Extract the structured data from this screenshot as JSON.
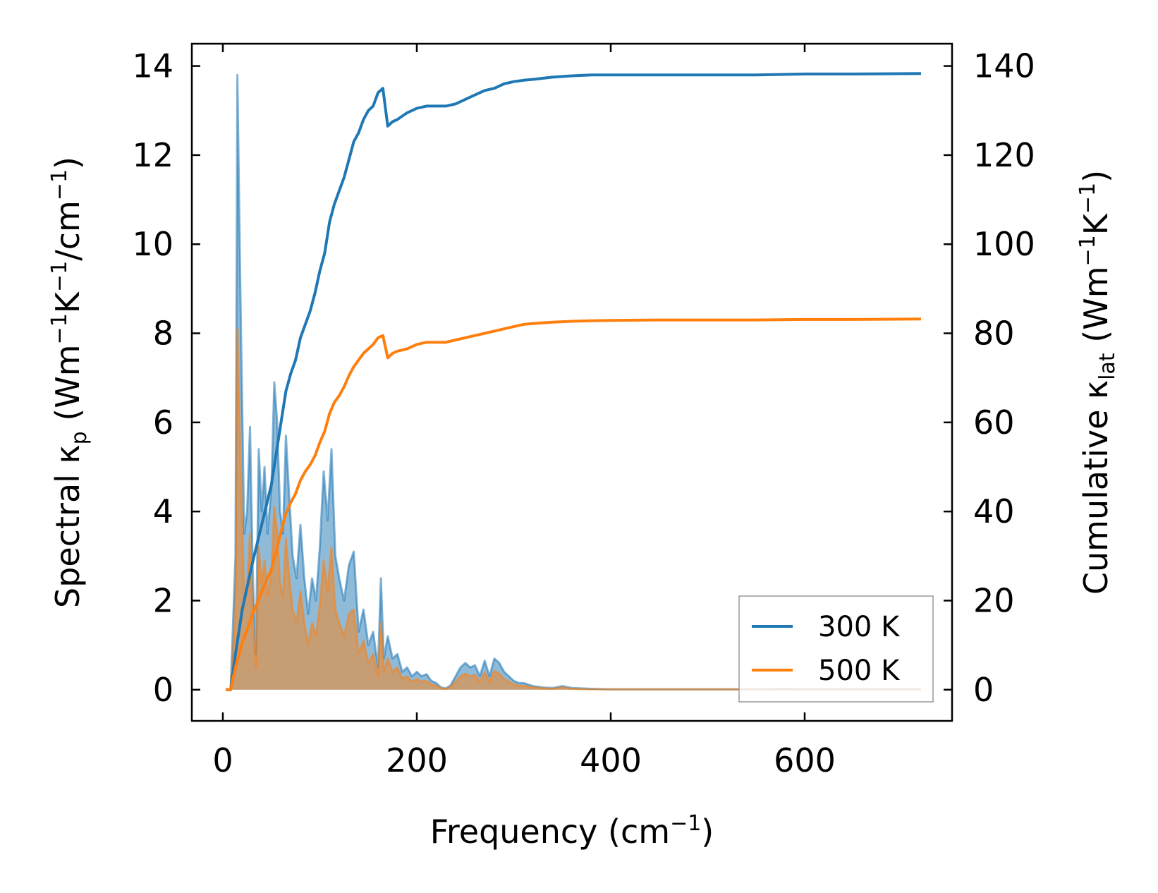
{
  "chart_data": {
    "type": "line",
    "xlabel": {
      "main": "Frequency (cm",
      "sup": "−1",
      "end": ")"
    },
    "ylabel_left": {
      "main": "Spectral κ",
      "sub": "p",
      "mid": " (Wm",
      "sup1": "−1",
      "mid2": "K",
      "sup2": "−1",
      "mid3": "/cm",
      "sup3": "−1",
      "end": ")"
    },
    "ylabel_right": {
      "main": "Cumulative κ",
      "sub": "lat",
      "mid": " (Wm",
      "sup1": "−1",
      "mid2": "K",
      "sup2": "−1",
      "end": ")"
    },
    "xlim": [
      -32,
      752
    ],
    "ylim_left": [
      -0.7,
      14.5
    ],
    "ylim_right": [
      -7,
      145
    ],
    "xticks": [
      0,
      200,
      400,
      600
    ],
    "yticks_left": [
      0,
      2,
      4,
      6,
      8,
      10,
      12,
      14
    ],
    "yticks_right": [
      0,
      20,
      40,
      60,
      80,
      100,
      120,
      140
    ],
    "legend_position": "lower-right",
    "colors": {
      "series_300K": "#1f77b4",
      "series_500K": "#ff7f0e",
      "fill_300K": "#1f77b4",
      "fill_500K": "#ff7f0e"
    },
    "spectral_series": [
      {
        "name": "300 K",
        "x": [
          3,
          8,
          13,
          15,
          18,
          22,
          25,
          28,
          31,
          34,
          37,
          40,
          43,
          46,
          50,
          53,
          56,
          59,
          62,
          65,
          68,
          72,
          76,
          80,
          84,
          88,
          92,
          96,
          100,
          104,
          108,
          112,
          116,
          120,
          125,
          130,
          135,
          140,
          145,
          150,
          155,
          160,
          163,
          166,
          170,
          175,
          180,
          185,
          190,
          195,
          200,
          205,
          210,
          215,
          220,
          225,
          230,
          235,
          240,
          245,
          250,
          255,
          260,
          265,
          270,
          275,
          280,
          285,
          290,
          295,
          300,
          305,
          310,
          320,
          330,
          340,
          350,
          360,
          380,
          400,
          450,
          500,
          550,
          580,
          600,
          650,
          720
        ],
        "y": [
          0,
          0,
          3.0,
          13.8,
          9.0,
          3.5,
          4.0,
          5.9,
          2.5,
          0.8,
          5.4,
          4.0,
          5.0,
          3.5,
          4.5,
          6.9,
          6.0,
          4.0,
          3.5,
          5.7,
          4.5,
          3.0,
          2.5,
          3.7,
          2.5,
          1.7,
          2.5,
          2.0,
          3.2,
          4.9,
          3.8,
          5.4,
          3.0,
          2.5,
          2.0,
          2.8,
          3.1,
          1.3,
          1.8,
          1.0,
          1.3,
          0.5,
          2.5,
          0.7,
          1.2,
          0.7,
          0.8,
          0.4,
          0.5,
          0.3,
          0.4,
          0.3,
          0.35,
          0.2,
          0.15,
          0.05,
          0.03,
          0.1,
          0.3,
          0.5,
          0.6,
          0.5,
          0.55,
          0.3,
          0.65,
          0.3,
          0.7,
          0.6,
          0.4,
          0.3,
          0.2,
          0.15,
          0.15,
          0.08,
          0.05,
          0.04,
          0.08,
          0.04,
          0.02,
          0.01,
          0.01,
          0.01,
          0.01,
          0.02,
          0.01,
          0.01,
          0.01
        ]
      },
      {
        "name": "500 K",
        "x": [
          3,
          8,
          13,
          15,
          18,
          22,
          25,
          28,
          31,
          34,
          37,
          40,
          43,
          46,
          50,
          53,
          56,
          59,
          62,
          65,
          68,
          72,
          76,
          80,
          84,
          88,
          92,
          96,
          100,
          104,
          108,
          112,
          116,
          120,
          125,
          130,
          135,
          140,
          145,
          150,
          155,
          160,
          163,
          166,
          170,
          175,
          180,
          185,
          190,
          195,
          200,
          205,
          210,
          215,
          220,
          225,
          230,
          235,
          240,
          245,
          250,
          255,
          260,
          265,
          270,
          275,
          280,
          285,
          290,
          295,
          300,
          305,
          310,
          320,
          330,
          340,
          350,
          360,
          380,
          400,
          450,
          500,
          550,
          580,
          600,
          650,
          720
        ],
        "y": [
          0,
          0,
          1.8,
          8.1,
          5.3,
          2.1,
          2.3,
          3.5,
          1.5,
          0.5,
          3.2,
          2.4,
          2.9,
          2.1,
          2.6,
          4.1,
          3.5,
          2.4,
          2.1,
          3.4,
          2.6,
          1.8,
          1.5,
          2.2,
          1.5,
          1.0,
          1.5,
          1.2,
          1.9,
          2.9,
          2.2,
          3.2,
          1.8,
          1.5,
          1.2,
          1.7,
          1.8,
          0.8,
          1.1,
          0.6,
          0.8,
          0.3,
          1.5,
          0.4,
          0.7,
          0.4,
          0.5,
          0.25,
          0.3,
          0.18,
          0.24,
          0.18,
          0.2,
          0.12,
          0.09,
          0.03,
          0.02,
          0.06,
          0.18,
          0.3,
          0.36,
          0.3,
          0.33,
          0.18,
          0.39,
          0.18,
          0.42,
          0.36,
          0.24,
          0.18,
          0.12,
          0.09,
          0.09,
          0.05,
          0.03,
          0.02,
          0.05,
          0.02,
          0.01,
          0.01,
          0.01,
          0.01,
          0.01,
          0.01,
          0.01,
          0.01,
          0.01
        ]
      }
    ],
    "cumulative_series": [
      {
        "name": "300 K",
        "x": [
          3,
          8,
          13,
          20,
          25,
          30,
          40,
          50,
          55,
          60,
          65,
          70,
          75,
          80,
          85,
          90,
          95,
          100,
          105,
          110,
          115,
          120,
          125,
          130,
          135,
          140,
          145,
          150,
          155,
          160,
          165,
          170,
          175,
          180,
          190,
          200,
          210,
          220,
          230,
          240,
          250,
          260,
          270,
          280,
          290,
          300,
          310,
          320,
          340,
          360,
          380,
          400,
          450,
          500,
          550,
          600,
          650,
          720
        ],
        "y": [
          0,
          0,
          8,
          18,
          23,
          28,
          37,
          46,
          53,
          60,
          67,
          71,
          74,
          79,
          82,
          85,
          89,
          94,
          98,
          105,
          109,
          112,
          115,
          119,
          123,
          125,
          128,
          130,
          131,
          134,
          135,
          126.5,
          127.5,
          128,
          129.5,
          130.5,
          131,
          131,
          131,
          131.5,
          132.5,
          133.5,
          134.5,
          135,
          136,
          136.5,
          136.8,
          137,
          137.5,
          137.8,
          138,
          138,
          138,
          138,
          138,
          138.2,
          138.2,
          138.3
        ]
      },
      {
        "name": "500 K",
        "x": [
          3,
          8,
          13,
          20,
          25,
          30,
          40,
          50,
          55,
          60,
          65,
          70,
          75,
          80,
          85,
          90,
          95,
          100,
          105,
          110,
          115,
          120,
          125,
          130,
          135,
          140,
          145,
          150,
          155,
          160,
          165,
          170,
          175,
          180,
          190,
          200,
          210,
          220,
          230,
          240,
          250,
          260,
          270,
          280,
          290,
          300,
          310,
          320,
          340,
          360,
          380,
          400,
          450,
          500,
          550,
          600,
          650,
          720
        ],
        "y": [
          0,
          0,
          5,
          10.5,
          13.5,
          16.5,
          22,
          27,
          31,
          35.5,
          39.5,
          42,
          44,
          47,
          49,
          50.5,
          52.5,
          55.5,
          58,
          62,
          64.5,
          66,
          68,
          70.5,
          72.5,
          74,
          75.5,
          76.5,
          77.5,
          79,
          79.5,
          74.5,
          75.5,
          76,
          76.5,
          77.5,
          78,
          78,
          78,
          78.5,
          79,
          79.5,
          80,
          80.5,
          81,
          81.5,
          82,
          82.2,
          82.5,
          82.7,
          82.8,
          82.9,
          83,
          83,
          83,
          83.1,
          83.1,
          83.2
        ]
      }
    ],
    "legend": [
      "300 K",
      "500 K"
    ]
  }
}
